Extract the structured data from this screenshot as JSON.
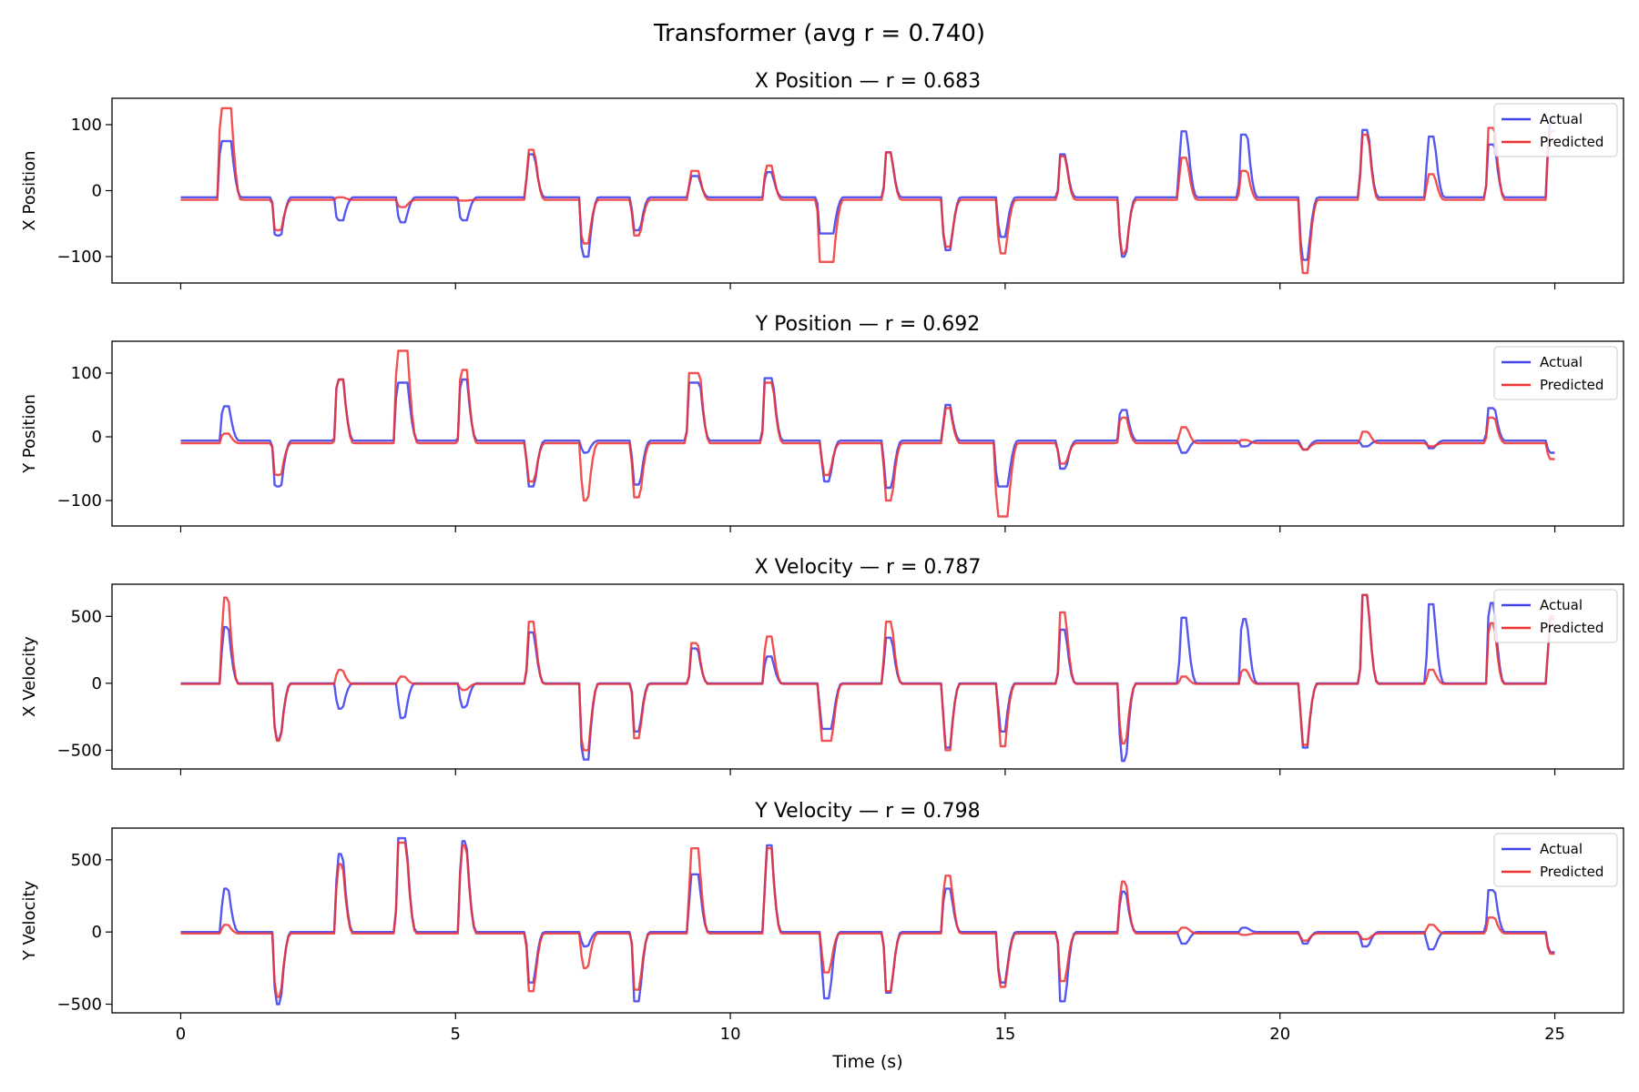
{
  "chart_data": {
    "type": "line",
    "title": "Transformer (avg r = 0.740)",
    "xlabel": "Time (s)",
    "xlim": [
      -1.25,
      26.25
    ],
    "xticks": [
      0,
      5,
      10,
      15,
      20,
      25
    ],
    "colors": {
      "actual": "#4444ee",
      "predicted": "#ee3333",
      "overlap": "#9b1c52"
    },
    "legend": {
      "position": "top-right",
      "entries": [
        "Actual",
        "Predicted"
      ]
    },
    "panels": [
      {
        "title": "X Position — r = 0.683",
        "ylabel": "X Position",
        "ylim": [
          -140,
          140
        ],
        "yticks": [
          -100,
          0,
          100
        ],
        "events": [
          [
            0.82,
            75,
            125,
            0.2
          ],
          [
            1.77,
            -68,
            -60,
            0.12
          ],
          [
            2.9,
            -45,
            -10,
            0.12
          ],
          [
            4.03,
            -48,
            -25,
            0.12
          ],
          [
            5.15,
            -45,
            -15,
            0.12
          ],
          [
            6.38,
            55,
            62,
            0.12
          ],
          [
            7.36,
            -100,
            -80,
            0.12
          ],
          [
            8.3,
            -60,
            -68,
            0.12
          ],
          [
            9.35,
            22,
            30,
            0.15
          ],
          [
            10.7,
            28,
            38,
            0.12
          ],
          [
            11.75,
            -65,
            -108,
            0.25
          ],
          [
            12.88,
            58,
            58,
            0.1
          ],
          [
            13.95,
            -90,
            -85,
            0.12
          ],
          [
            14.95,
            -70,
            -95,
            0.12
          ],
          [
            16.05,
            55,
            52,
            0.1
          ],
          [
            17.15,
            -100,
            -95,
            0.1
          ],
          [
            18.25,
            90,
            50,
            0.12
          ],
          [
            19.35,
            85,
            30,
            0.12
          ],
          [
            20.45,
            -105,
            -125,
            0.12
          ],
          [
            21.55,
            92,
            85,
            0.12
          ],
          [
            22.75,
            82,
            25,
            0.12
          ],
          [
            23.85,
            70,
            95,
            0.12
          ],
          [
            24.95,
            105,
            90,
            0.12
          ]
        ],
        "baseline": {
          "actual": -10,
          "predicted": -14
        }
      },
      {
        "title": "Y Position — r = 0.692",
        "ylabel": "Y Position",
        "ylim": [
          -140,
          150
        ],
        "yticks": [
          -100,
          0,
          100
        ],
        "events": [
          [
            0.82,
            48,
            5,
            0.12
          ],
          [
            1.77,
            -78,
            -60,
            0.12
          ],
          [
            2.9,
            90,
            90,
            0.12
          ],
          [
            4.03,
            85,
            135,
            0.2
          ],
          [
            5.15,
            90,
            105,
            0.12
          ],
          [
            6.38,
            -78,
            -70,
            0.12
          ],
          [
            7.36,
            -25,
            -100,
            0.1
          ],
          [
            8.3,
            -75,
            -95,
            0.12
          ],
          [
            9.35,
            85,
            100,
            0.2
          ],
          [
            10.7,
            92,
            85,
            0.15
          ],
          [
            11.75,
            -70,
            -60,
            0.12
          ],
          [
            12.88,
            -80,
            -100,
            0.12
          ],
          [
            13.95,
            50,
            45,
            0.1
          ],
          [
            14.95,
            -78,
            -125,
            0.2
          ],
          [
            16.05,
            -50,
            -42,
            0.12
          ],
          [
            17.15,
            42,
            30,
            0.12
          ],
          [
            18.25,
            -25,
            15,
            0.12
          ],
          [
            19.35,
            -15,
            -5,
            0.12
          ],
          [
            20.45,
            -20,
            -20,
            0.1
          ],
          [
            21.55,
            -15,
            8,
            0.12
          ],
          [
            22.75,
            -18,
            -15,
            0.1
          ],
          [
            23.85,
            45,
            30,
            0.12
          ],
          [
            24.95,
            -25,
            -35,
            0.12
          ]
        ],
        "baseline": {
          "actual": -6,
          "predicted": -10
        }
      },
      {
        "title": "X Velocity — r = 0.787",
        "ylabel": "X Velocity",
        "ylim": [
          -640,
          740
        ],
        "yticks": [
          -500,
          0,
          500
        ],
        "events": [
          [
            0.82,
            420,
            640,
            0.1
          ],
          [
            1.77,
            -420,
            -430,
            0.1
          ],
          [
            2.9,
            -190,
            100,
            0.1
          ],
          [
            4.03,
            -260,
            50,
            0.1
          ],
          [
            5.15,
            -180,
            -50,
            0.1
          ],
          [
            6.38,
            380,
            460,
            0.1
          ],
          [
            7.36,
            -570,
            -500,
            0.12
          ],
          [
            8.3,
            -360,
            -410,
            0.1
          ],
          [
            9.35,
            260,
            300,
            0.12
          ],
          [
            10.7,
            200,
            350,
            0.12
          ],
          [
            11.75,
            -340,
            -430,
            0.2
          ],
          [
            12.88,
            340,
            460,
            0.12
          ],
          [
            13.95,
            -480,
            -500,
            0.1
          ],
          [
            14.95,
            -360,
            -470,
            0.1
          ],
          [
            16.05,
            400,
            530,
            0.1
          ],
          [
            17.15,
            -580,
            -450,
            0.1
          ],
          [
            18.25,
            490,
            50,
            0.1
          ],
          [
            19.35,
            480,
            100,
            0.1
          ],
          [
            20.45,
            -480,
            -460,
            0.1
          ],
          [
            21.55,
            660,
            660,
            0.1
          ],
          [
            22.75,
            590,
            100,
            0.1
          ],
          [
            23.85,
            600,
            450,
            0.1
          ],
          [
            24.95,
            480,
            500,
            0.1
          ]
        ],
        "baseline": {
          "actual": 0,
          "predicted": -5
        }
      },
      {
        "title": "Y Velocity — r = 0.798",
        "ylabel": "Y Velocity",
        "ylim": [
          -560,
          720
        ],
        "yticks": [
          -500,
          0,
          500
        ],
        "events": [
          [
            0.82,
            300,
            50,
            0.1
          ],
          [
            1.77,
            -500,
            -450,
            0.1
          ],
          [
            2.9,
            540,
            470,
            0.1
          ],
          [
            4.03,
            650,
            620,
            0.15
          ],
          [
            5.15,
            630,
            600,
            0.1
          ],
          [
            6.38,
            -350,
            -410,
            0.1
          ],
          [
            7.36,
            -100,
            -250,
            0.1
          ],
          [
            8.3,
            -480,
            -400,
            0.1
          ],
          [
            9.35,
            400,
            580,
            0.15
          ],
          [
            10.7,
            600,
            580,
            0.1
          ],
          [
            11.75,
            -460,
            -280,
            0.12
          ],
          [
            12.88,
            -420,
            -410,
            0.1
          ],
          [
            13.95,
            300,
            390,
            0.12
          ],
          [
            14.95,
            -350,
            -380,
            0.12
          ],
          [
            16.05,
            -480,
            -340,
            0.1
          ],
          [
            17.15,
            280,
            350,
            0.1
          ],
          [
            18.25,
            -80,
            30,
            0.12
          ],
          [
            19.35,
            30,
            -20,
            0.1
          ],
          [
            20.45,
            -80,
            -60,
            0.1
          ],
          [
            21.55,
            -100,
            -50,
            0.12
          ],
          [
            22.75,
            -120,
            50,
            0.12
          ],
          [
            23.85,
            290,
            100,
            0.12
          ],
          [
            24.95,
            -140,
            -150,
            0.12
          ]
        ],
        "baseline": {
          "actual": 0,
          "predicted": -10
        }
      }
    ]
  }
}
